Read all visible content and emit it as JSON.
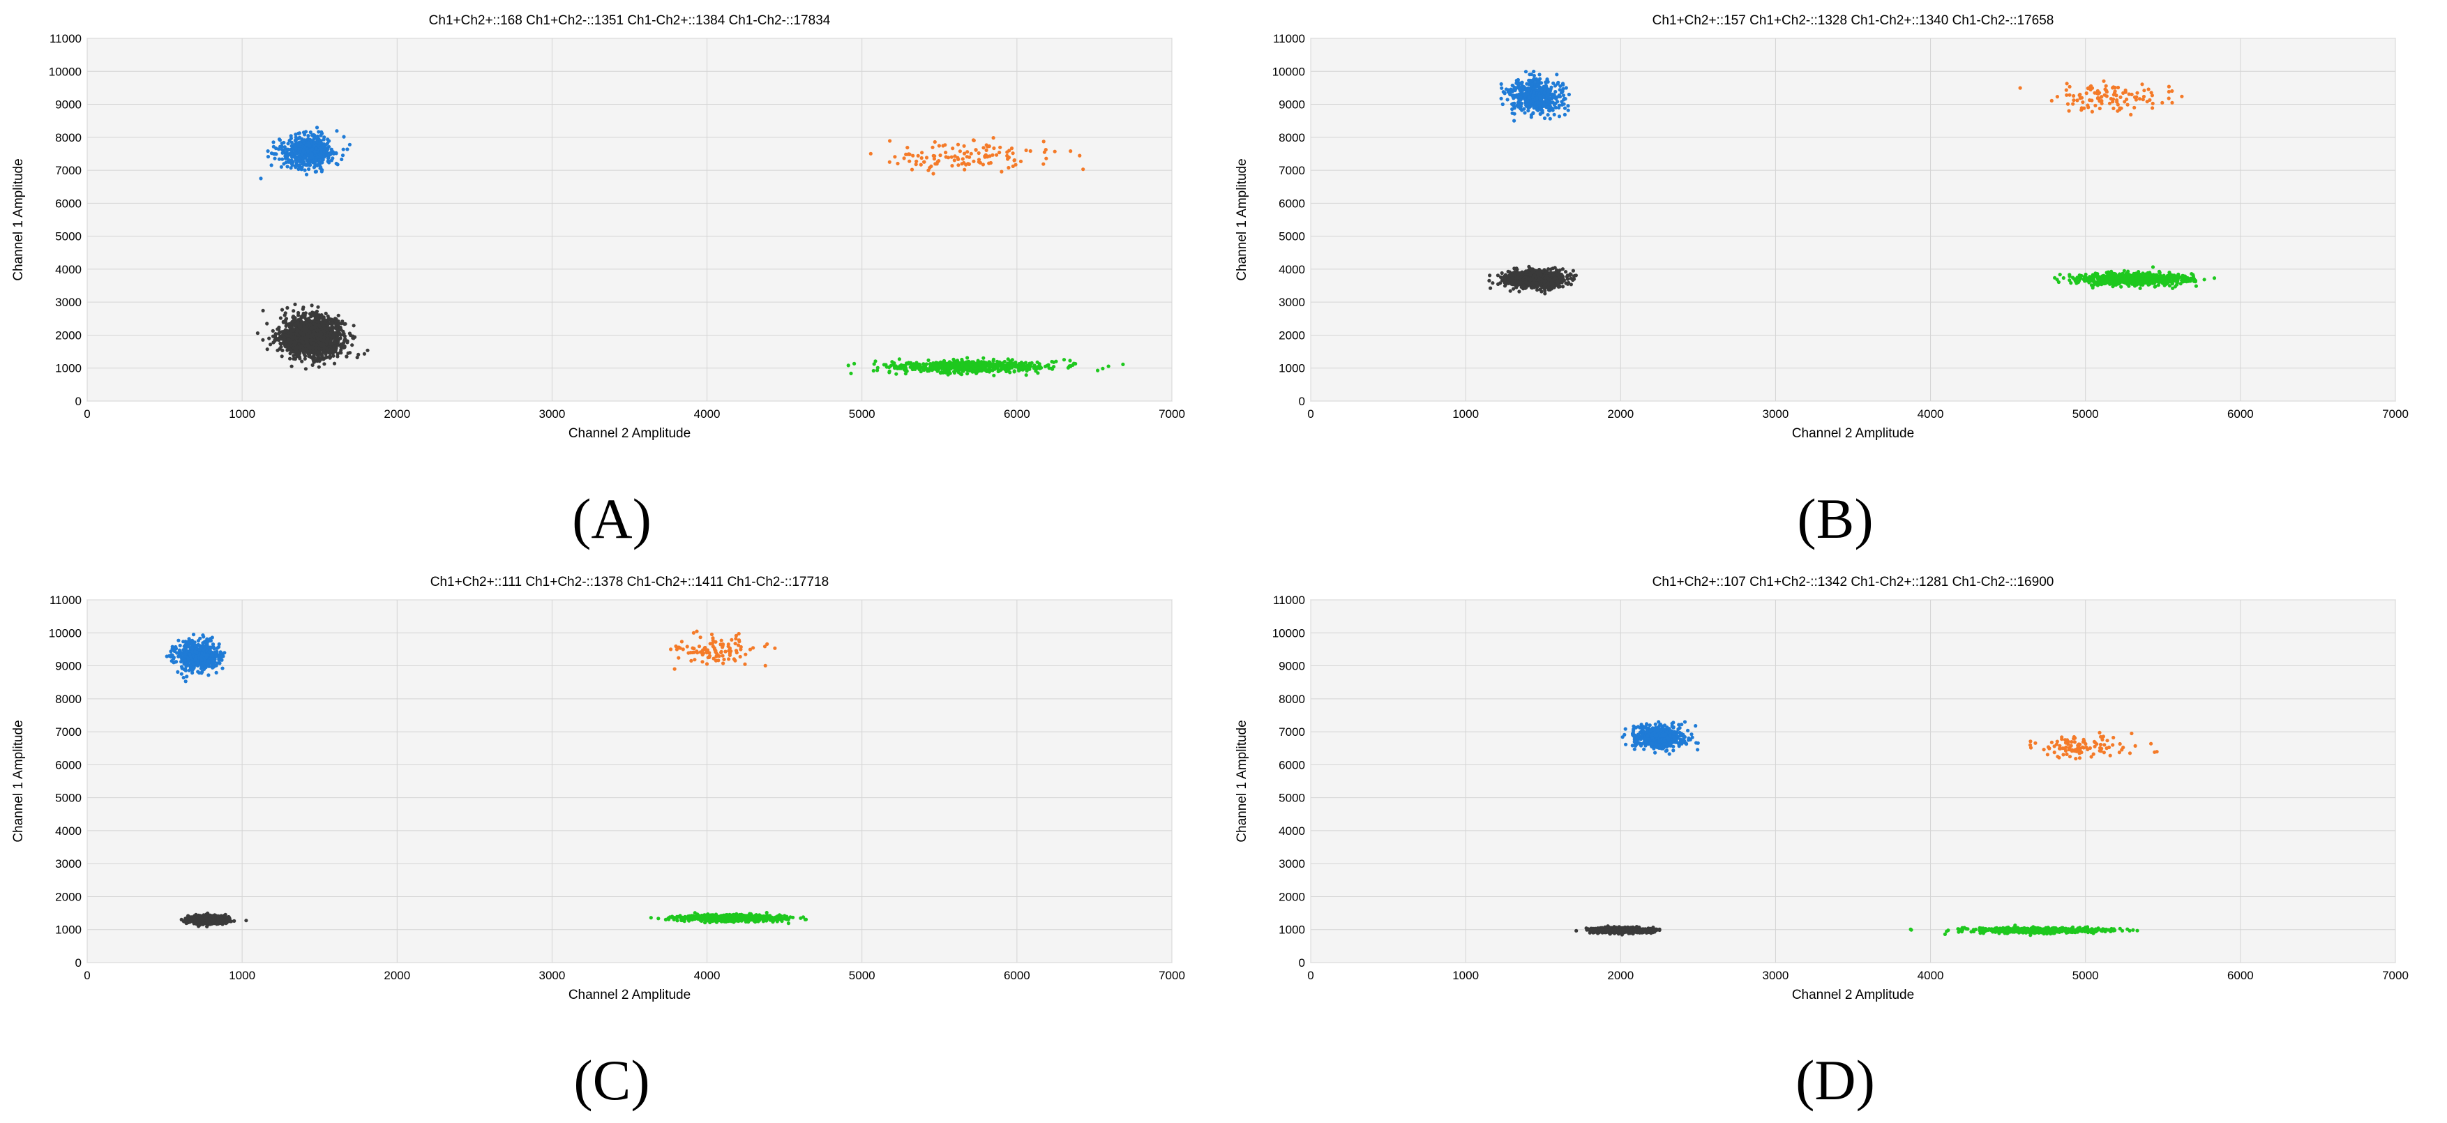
{
  "colors": {
    "ch1_pos_ch2_pos": "#f47a28",
    "ch1_pos_ch2_neg": "#1f7bd6",
    "ch1_neg_ch2_pos": "#1ec81e",
    "ch1_neg_ch2_neg": "#3a3a3a",
    "plot_bg": "#f4f4f4",
    "grid": "#d4d4d4"
  },
  "chart_data": [
    {
      "panel_label": "(A)",
      "type": "scatter",
      "title": "Ch1+Ch2+::168  Ch1+Ch2-::1351  Ch1-Ch2+::1384  Ch1-Ch2-::17834",
      "xlabel": "Channel 2 Amplitude",
      "ylabel": "Channel 1 Amplitude",
      "xlim": [
        0,
        7000
      ],
      "ylim": [
        0,
        11000
      ],
      "xticks": [
        0,
        1000,
        2000,
        3000,
        4000,
        5000,
        6000,
        7000
      ],
      "yticks": [
        0,
        1000,
        2000,
        3000,
        4000,
        5000,
        6000,
        7000,
        8000,
        9000,
        10000,
        11000
      ],
      "grid": true,
      "clusters": [
        {
          "name": "Ch1+Ch2+",
          "color": "#f47a28",
          "center": [
            5700,
            7450
          ],
          "spread": [
            280,
            220
          ],
          "count": 120
        },
        {
          "name": "Ch1+Ch2-",
          "color": "#1f7bd6",
          "center": [
            1420,
            7550
          ],
          "spread": [
            95,
            260
          ],
          "count": 500
        },
        {
          "name": "Ch1-Ch2+",
          "color": "#1ec81e",
          "center": [
            5700,
            1050
          ],
          "spread": [
            260,
            90
          ],
          "count": 650
        },
        {
          "name": "Ch1-Ch2-",
          "color": "#3a3a3a",
          "center": [
            1450,
            1950
          ],
          "spread": [
            100,
            300
          ],
          "count": 1500
        }
      ]
    },
    {
      "panel_label": "(B)",
      "type": "scatter",
      "title": "Ch1+Ch2+::157  Ch1+Ch2-::1328  Ch1-Ch2+::1340  Ch1-Ch2-::17658",
      "xlabel": "Channel 2 Amplitude",
      "ylabel": "Channel 1 Amplitude",
      "xlim": [
        0,
        7000
      ],
      "ylim": [
        0,
        11000
      ],
      "xticks": [
        0,
        1000,
        2000,
        3000,
        4000,
        5000,
        6000,
        7000
      ],
      "yticks": [
        0,
        1000,
        2000,
        3000,
        4000,
        5000,
        6000,
        7000,
        8000,
        9000,
        10000,
        11000
      ],
      "grid": true,
      "clusters": [
        {
          "name": "Ch1+Ch2+",
          "color": "#f47a28",
          "center": [
            5150,
            9200
          ],
          "spread": [
            180,
            220
          ],
          "count": 110
        },
        {
          "name": "Ch1+Ch2-",
          "color": "#1f7bd6",
          "center": [
            1450,
            9250
          ],
          "spread": [
            85,
            260
          ],
          "count": 500
        },
        {
          "name": "Ch1-Ch2+",
          "color": "#1ec81e",
          "center": [
            5300,
            3700
          ],
          "spread": [
            180,
            90
          ],
          "count": 650
        },
        {
          "name": "Ch1-Ch2-",
          "color": "#3a3a3a",
          "center": [
            1450,
            3700
          ],
          "spread": [
            90,
            120
          ],
          "count": 1200
        }
      ]
    },
    {
      "panel_label": "(C)",
      "type": "scatter",
      "title": "Ch1+Ch2+::111  Ch1+Ch2-::1378  Ch1-Ch2+::1411  Ch1-Ch2-::17718",
      "xlabel": "Channel 2 Amplitude",
      "ylabel": "Channel 1 Amplitude",
      "xlim": [
        0,
        7000
      ],
      "ylim": [
        0,
        11000
      ],
      "xticks": [
        0,
        1000,
        2000,
        3000,
        4000,
        5000,
        6000,
        7000
      ],
      "yticks": [
        0,
        1000,
        2000,
        3000,
        4000,
        5000,
        6000,
        7000,
        8000,
        9000,
        10000,
        11000
      ],
      "grid": true,
      "clusters": [
        {
          "name": "Ch1+Ch2+",
          "color": "#f47a28",
          "center": [
            4050,
            9450
          ],
          "spread": [
            150,
            220
          ],
          "count": 100
        },
        {
          "name": "Ch1+Ch2-",
          "color": "#1f7bd6",
          "center": [
            720,
            9300
          ],
          "spread": [
            70,
            230
          ],
          "count": 500
        },
        {
          "name": "Ch1-Ch2+",
          "color": "#1ec81e",
          "center": [
            4150,
            1350
          ],
          "spread": [
            170,
            50
          ],
          "count": 650
        },
        {
          "name": "Ch1-Ch2-",
          "color": "#3a3a3a",
          "center": [
            780,
            1300
          ],
          "spread": [
            60,
            60
          ],
          "count": 900
        }
      ]
    },
    {
      "panel_label": "(D)",
      "type": "scatter",
      "title": "Ch1+Ch2+::107  Ch1+Ch2-::1342  Ch1-Ch2+::1281  Ch1-Ch2-::16900",
      "xlabel": "Channel 2 Amplitude",
      "ylabel": "Channel 1 Amplitude",
      "xlim": [
        0,
        7000
      ],
      "ylim": [
        0,
        11000
      ],
      "xticks": [
        0,
        1000,
        2000,
        3000,
        4000,
        5000,
        6000,
        7000
      ],
      "yticks": [
        0,
        1000,
        2000,
        3000,
        4000,
        5000,
        6000,
        7000,
        8000,
        9000,
        10000,
        11000
      ],
      "grid": true,
      "clusters": [
        {
          "name": "Ch1+Ch2+",
          "color": "#f47a28",
          "center": [
            4950,
            6550
          ],
          "spread": [
            170,
            180
          ],
          "count": 100
        },
        {
          "name": "Ch1+Ch2-",
          "color": "#1f7bd6",
          "center": [
            2250,
            6850
          ],
          "spread": [
            85,
            170
          ],
          "count": 500
        },
        {
          "name": "Ch1-Ch2+",
          "color": "#1ec81e",
          "center": [
            4700,
            980
          ],
          "spread": [
            230,
            40
          ],
          "count": 600
        },
        {
          "name": "Ch1-Ch2-",
          "color": "#3a3a3a",
          "center": [
            2000,
            980
          ],
          "spread": [
            90,
            40
          ],
          "count": 900
        }
      ]
    }
  ]
}
